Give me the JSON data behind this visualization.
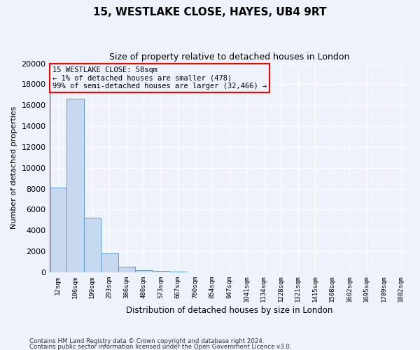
{
  "title1": "15, WESTLAKE CLOSE, HAYES, UB4 9RT",
  "title2": "Size of property relative to detached houses in London",
  "xlabel": "Distribution of detached houses by size in London",
  "ylabel": "Number of detached properties",
  "categories": [
    "12sqm",
    "106sqm",
    "199sqm",
    "293sqm",
    "386sqm",
    "480sqm",
    "573sqm",
    "667sqm",
    "760sqm",
    "854sqm",
    "947sqm",
    "1041sqm",
    "1134sqm",
    "1228sqm",
    "1321sqm",
    "1415sqm",
    "1508sqm",
    "1602sqm",
    "1695sqm",
    "1789sqm",
    "1882sqm"
  ],
  "values": [
    8100,
    16600,
    5200,
    1800,
    500,
    200,
    150,
    50,
    0,
    0,
    0,
    0,
    0,
    0,
    0,
    0,
    0,
    0,
    0,
    0,
    0
  ],
  "bar_color": "#c5d8f0",
  "bar_edge_color": "#5b9bd5",
  "annotation_line1": "15 WESTLAKE CLOSE: 58sqm",
  "annotation_line2": "← 1% of detached houses are smaller (478)",
  "annotation_line3": "99% of semi-detached houses are larger (32,466) →",
  "ylim": [
    0,
    20000
  ],
  "yticks": [
    0,
    2000,
    4000,
    6000,
    8000,
    10000,
    12000,
    14000,
    16000,
    18000,
    20000
  ],
  "footer1": "Contains HM Land Registry data © Crown copyright and database right 2024.",
  "footer2": "Contains public sector information licensed under the Open Government Licence v3.0.",
  "bg_color": "#edf2fb",
  "grid_color": "#ffffff",
  "annotation_box_edge": "red",
  "red_line_x": -0.5,
  "title1_fontsize": 11,
  "title2_fontsize": 9
}
